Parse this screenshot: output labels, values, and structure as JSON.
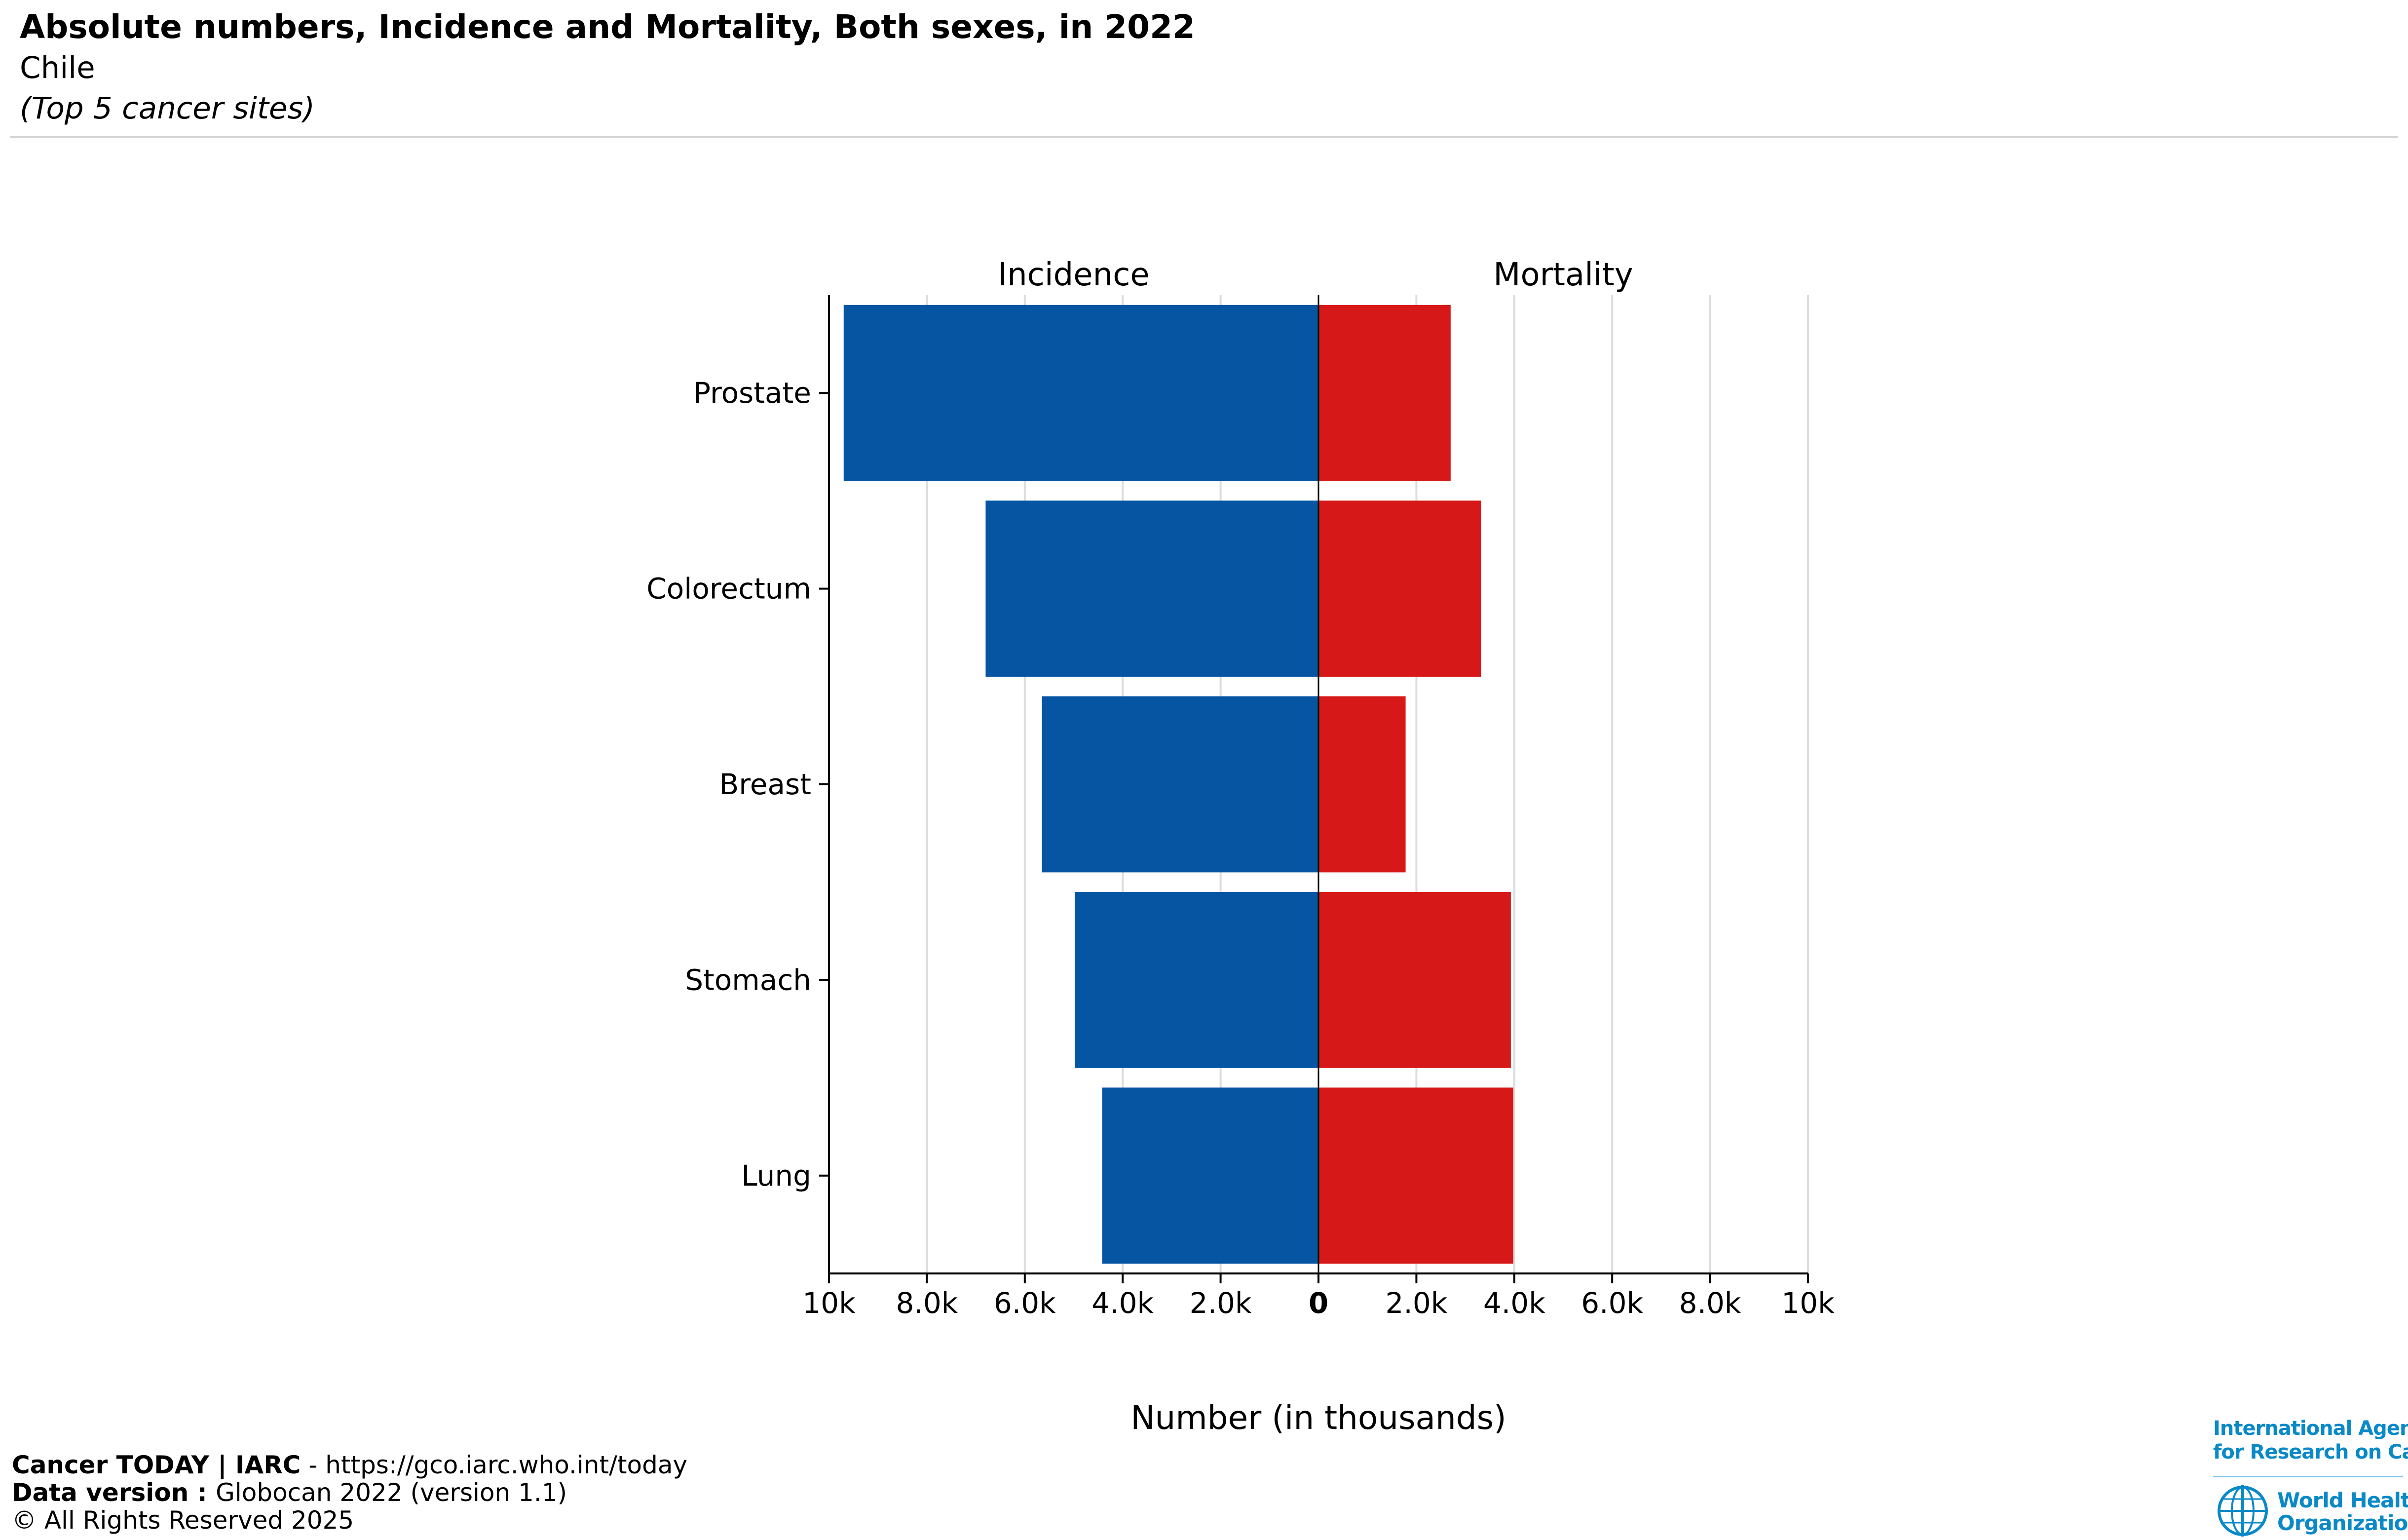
{
  "header": {
    "title": "Absolute numbers, Incidence and Mortality, Both sexes, in 2022",
    "subtitle": "Chile",
    "note": "(Top 5 cancer sites)"
  },
  "footer": {
    "line1_bold": "Cancer TODAY | IARC",
    "line1_rest": " - https://gco.iarc.who.int/today",
    "line2_bold": "Data version : ",
    "line2_rest": "Globocan 2022 (version 1.1)",
    "line3": "© All Rights Reserved 2025"
  },
  "logos": {
    "iarc_line1": "International Agency",
    "iarc_line2": "for Research on Cancer",
    "who_line1": "World Health",
    "who_line2": "Organization"
  },
  "colors": {
    "incidence": "#0555a3",
    "mortality": "#d61818",
    "grid": "#dcdcdc"
  },
  "chart_data": {
    "type": "bar",
    "orientation": "horizontal-butterfly",
    "categories": [
      "Prostate",
      "Colorectum",
      "Breast",
      "Stomach",
      "Lung"
    ],
    "series": [
      {
        "name": "Incidence",
        "side": "left",
        "values": [
          9700,
          6800,
          5650,
          4980,
          4420
        ]
      },
      {
        "name": "Mortality",
        "side": "right",
        "values": [
          2700,
          3320,
          1780,
          3930,
          3980
        ]
      }
    ],
    "xlabel": "Number (in thousands)",
    "xlim": [
      0,
      10000
    ],
    "ticks": [
      10000,
      8000,
      6000,
      4000,
      2000,
      0
    ],
    "tick_labels_left": [
      "10k",
      "8.0k",
      "6.0k",
      "4.0k",
      "2.0k",
      "0"
    ],
    "tick_labels_right": [
      "0",
      "2.0k",
      "4.0k",
      "6.0k",
      "8.0k",
      "10k"
    ],
    "grid": true
  }
}
